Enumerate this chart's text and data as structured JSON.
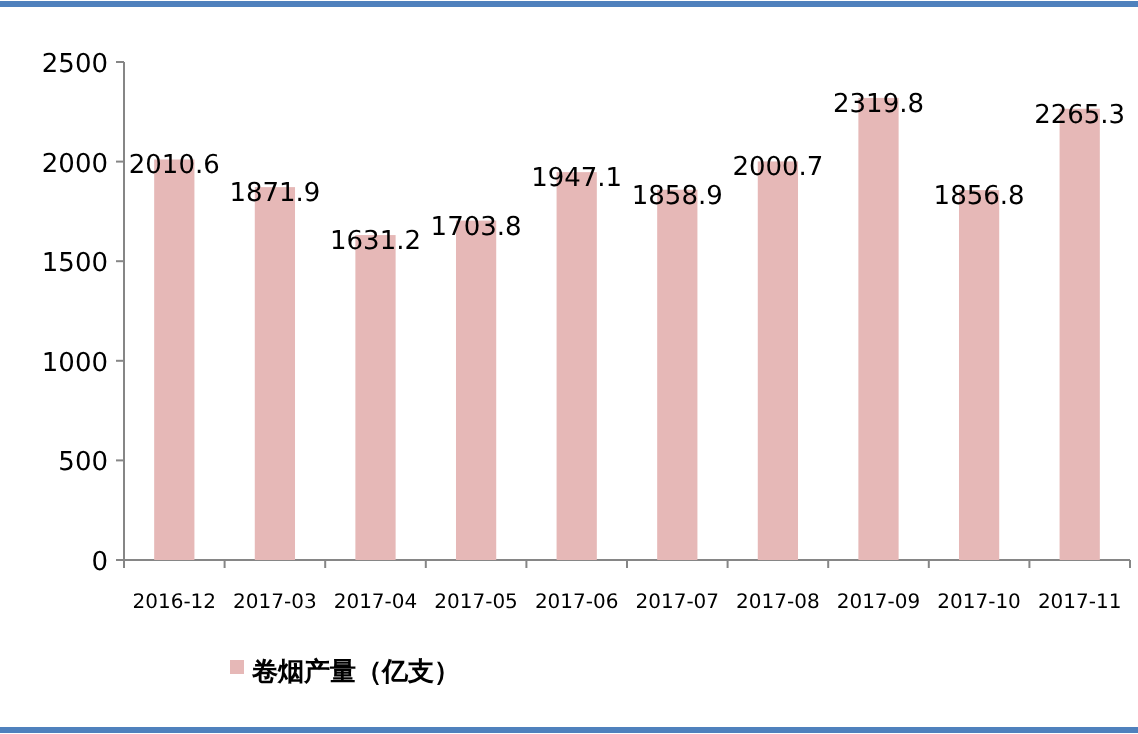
{
  "chart_data": {
    "type": "bar",
    "categories": [
      "2016-12",
      "2017-03",
      "2017-04",
      "2017-05",
      "2017-06",
      "2017-07",
      "2017-08",
      "2017-09",
      "2017-10",
      "2017-11"
    ],
    "series": [
      {
        "name": "卷烟产量（亿支）",
        "color": "#e6b8b7",
        "values": [
          2010.6,
          1871.9,
          1631.2,
          1703.8,
          1947.1,
          1858.9,
          2000.7,
          2319.8,
          1856.8,
          2265.3
        ]
      }
    ],
    "ylim": [
      0,
      2500
    ],
    "yticks": [
      0,
      500,
      1000,
      1500,
      2000,
      2500
    ],
    "data_labels": true,
    "legend": "bottom left",
    "grid": false
  }
}
